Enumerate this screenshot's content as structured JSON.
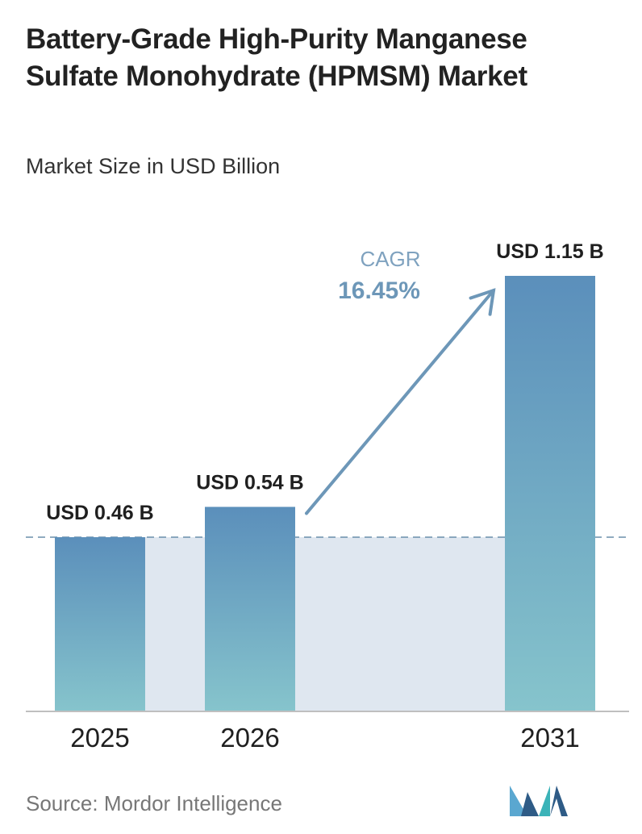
{
  "title": "Battery-Grade High-Purity Manganese Sulfate Monohydrate (HPMSM) Market",
  "subtitle": "Market Size in USD Billion",
  "source": "Source: Mordor Intelligence",
  "chart_data": {
    "type": "bar",
    "categories": [
      "2025",
      "2026",
      "2031"
    ],
    "values": [
      0.46,
      0.54,
      1.15
    ],
    "value_labels": [
      "USD 0.46 B",
      "USD 0.54 B",
      "USD 1.15 B"
    ],
    "unit": "USD Billion",
    "ylim": [
      0,
      1.15
    ],
    "grid": false,
    "reference_line_value": 0.46,
    "cagr": {
      "label": "CAGR",
      "value": "16.45%",
      "from": "2026",
      "to": "2031"
    },
    "colors": {
      "bar_top": "#5b8fbb",
      "bar_bottom": "#86c4cc",
      "shade": "#dfe7f0",
      "reference_line": "#6a8fab",
      "arrow": "#6d97b8",
      "cagr_label": "#7fa2bf",
      "cagr_value": "#6d97b8",
      "axis": "#bfbfbf"
    }
  },
  "logo": {
    "icon": "mordor-intelligence-logo",
    "colors": [
      "#5aa7d0",
      "#2e5b86",
      "#3bb3b8"
    ]
  }
}
